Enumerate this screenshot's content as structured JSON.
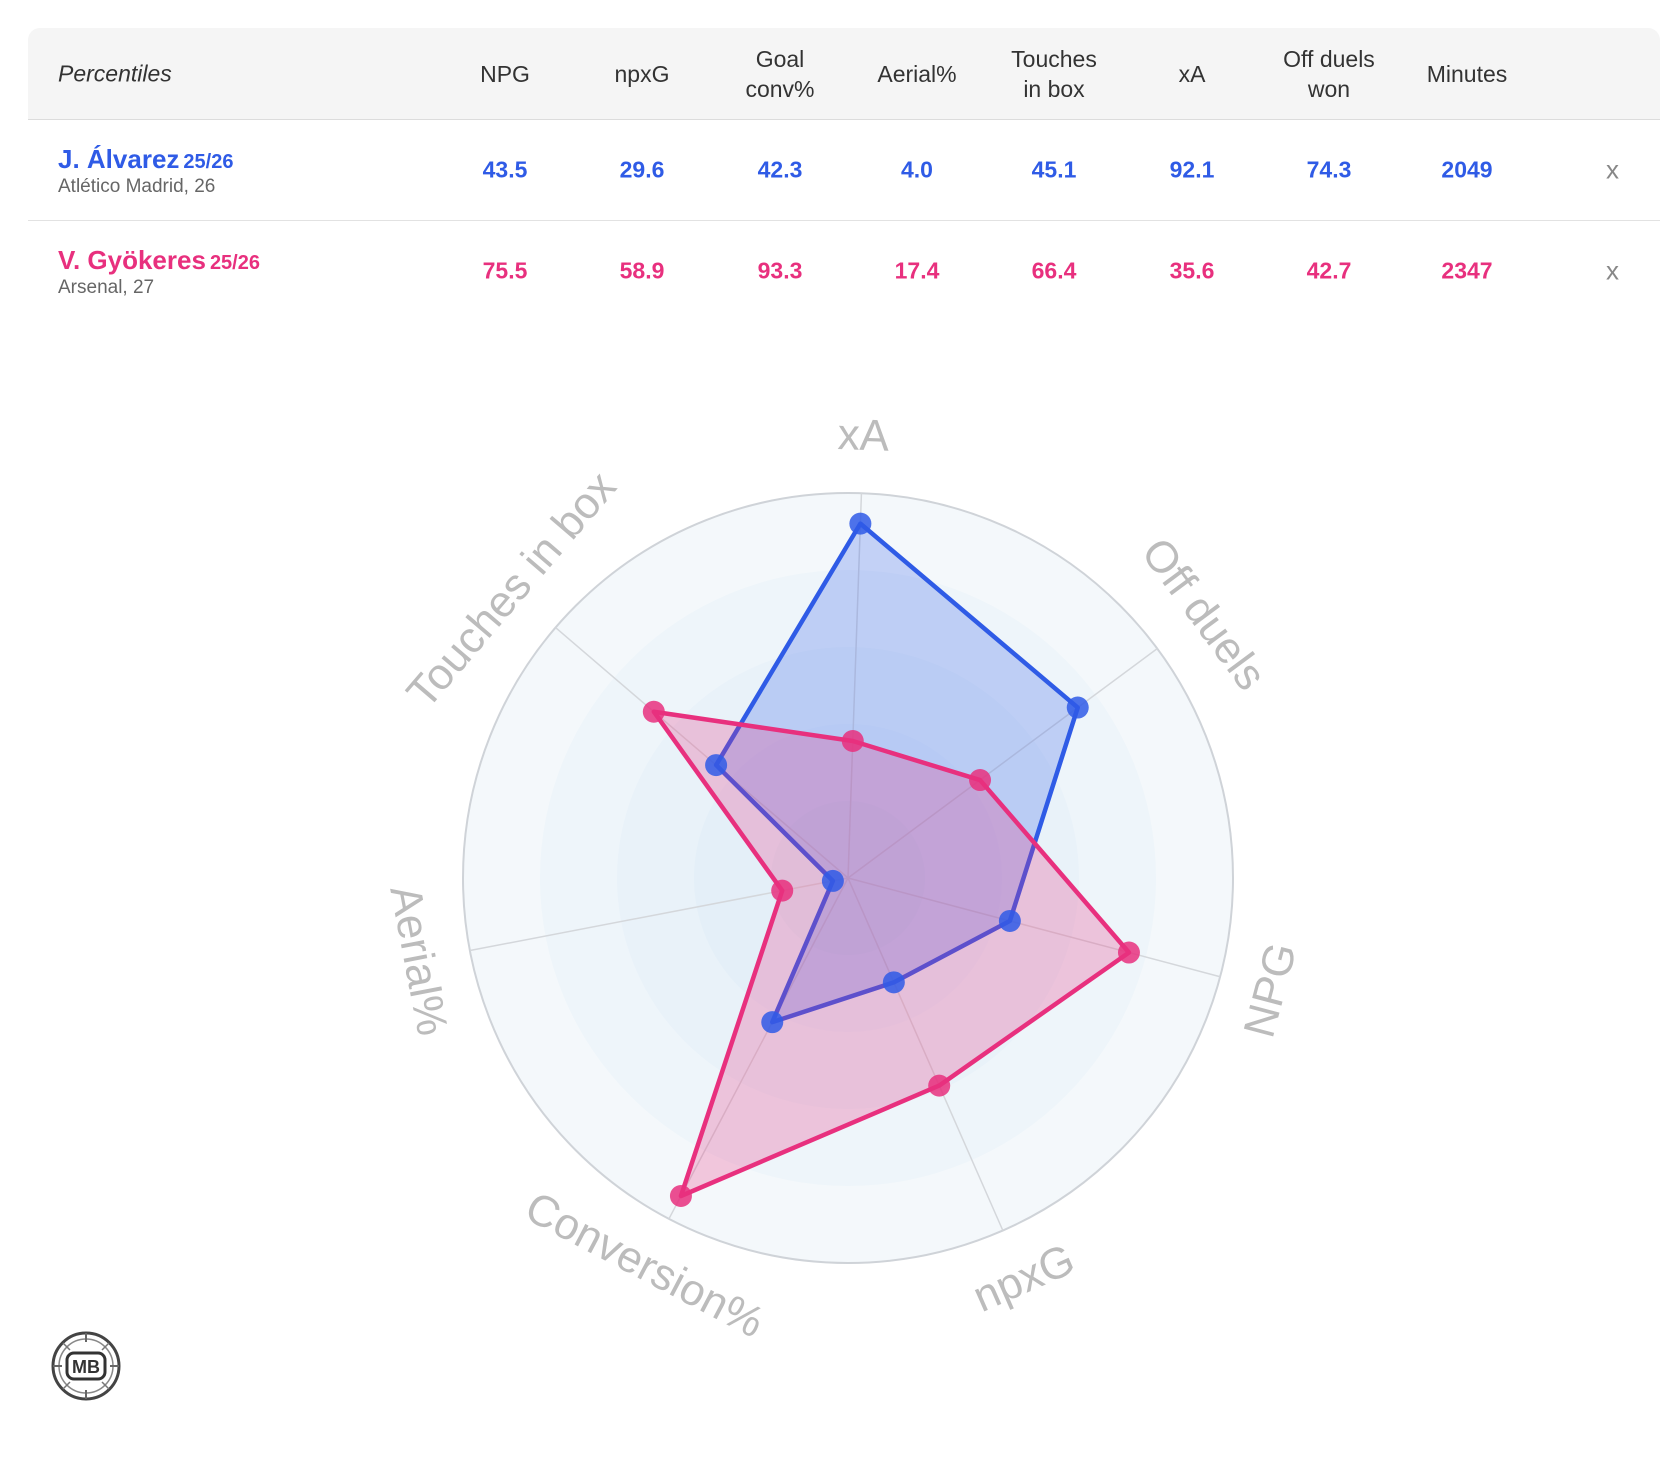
{
  "table": {
    "percentiles_label": "Percentiles",
    "columns": [
      {
        "line1": "NPG",
        "line2": ""
      },
      {
        "line1": "npxG",
        "line2": ""
      },
      {
        "line1": "Goal",
        "line2": "conv%"
      },
      {
        "line1": "Aerial%",
        "line2": ""
      },
      {
        "line1": "Touches",
        "line2": "in box"
      },
      {
        "line1": "xA",
        "line2": ""
      },
      {
        "line1": "Off duels",
        "line2": "won"
      },
      {
        "line1": "Minutes",
        "line2": ""
      }
    ],
    "players": [
      {
        "name": "J. Álvarez",
        "season": "25/26",
        "team": "Atlético Madrid, 26",
        "color": "#2f5be6",
        "values": [
          "43.5",
          "29.6",
          "42.3",
          "4.0",
          "45.1",
          "92.1",
          "74.3",
          "2049"
        ],
        "remove": "x"
      },
      {
        "name": "V. Gyökeres",
        "season": "25/26",
        "team": "Arsenal, 27",
        "color": "#e8307e",
        "values": [
          "75.5",
          "58.9",
          "93.3",
          "17.4",
          "66.4",
          "35.6",
          "42.7",
          "2347"
        ],
        "remove": "x"
      }
    ]
  },
  "chart_data": {
    "type": "radar",
    "axes": [
      "xA",
      "Off duels",
      "NPG",
      "npxG",
      "Conversion%",
      "Aerial%",
      "Touches in box"
    ],
    "range": [
      0,
      100
    ],
    "series": [
      {
        "name": "J. Álvarez",
        "color": "#2f5be6",
        "values": [
          92.1,
          74.3,
          43.5,
          29.6,
          42.3,
          4.0,
          45.1
        ]
      },
      {
        "name": "V. Gyökeres",
        "color": "#e8307e",
        "values": [
          35.6,
          42.7,
          75.5,
          58.9,
          93.3,
          17.4,
          66.4
        ]
      }
    ]
  },
  "logo": {
    "text": "MB"
  }
}
